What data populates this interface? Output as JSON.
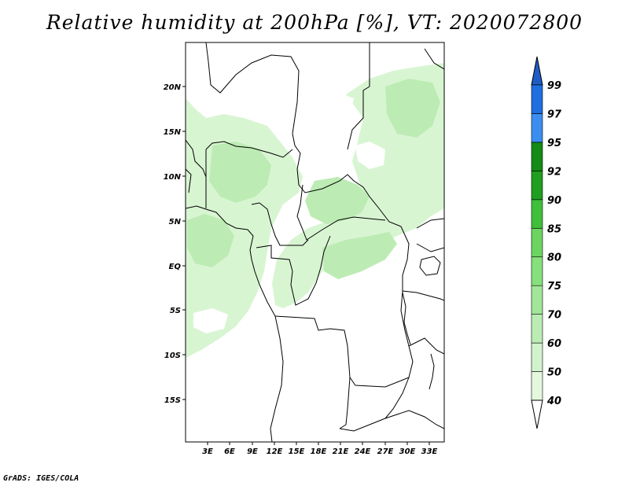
{
  "title": "Relative humidity at 200hPa [%], VT: 2020072800",
  "credit": "GrADS: IGES/COLA",
  "map": {
    "lon_ticks": [
      "3E",
      "6E",
      "9E",
      "12E",
      "15E",
      "18E",
      "21E",
      "24E",
      "27E",
      "30E",
      "33E"
    ],
    "lat_ticks": [
      "20N",
      "15N",
      "10N",
      "5N",
      "EQ",
      "5S",
      "10S",
      "15S"
    ]
  },
  "colorbar": {
    "levels": [
      "40",
      "50",
      "60",
      "70",
      "75",
      "80",
      "85",
      "90",
      "92",
      "95",
      "97",
      "99"
    ],
    "colors": [
      "#f0fcee",
      "#e3f8df",
      "#d2f2cd",
      "#bbecb4",
      "#a1e69a",
      "#86e07c",
      "#6cd562",
      "#3fbf3a",
      "#1f9e1f",
      "#138b14",
      "#3b8ef0",
      "#1e6fe0",
      "#1f5cc6"
    ]
  },
  "field": {
    "variable": "relative humidity",
    "level": "200hPa",
    "units": "%",
    "valid_time": "2020072800"
  }
}
